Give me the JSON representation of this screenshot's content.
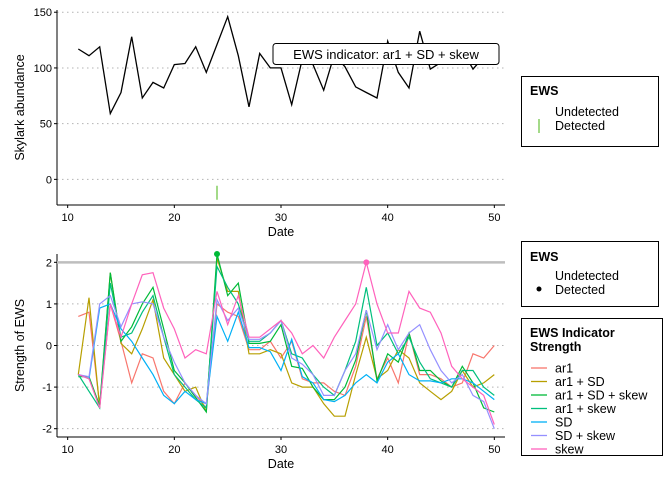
{
  "chart_data": [
    {
      "type": "line",
      "xlabel": "Date",
      "ylabel": "Skylark abundance",
      "xticks": [
        10,
        20,
        30,
        40,
        50
      ],
      "yticks": [
        0,
        50,
        100,
        150
      ],
      "xlim": [
        9,
        51
      ],
      "ylim": [
        -23,
        152
      ],
      "annotation": "EWS indicator: ar1 + SD + skew",
      "series": [
        {
          "name": "abundance",
          "color": "#000000",
          "x": [
            11,
            12,
            13,
            14,
            15,
            16,
            17,
            18,
            19,
            20,
            21,
            22,
            23,
            24,
            25,
            26,
            27,
            28,
            29,
            30,
            31,
            32,
            33,
            34,
            35,
            36,
            37,
            38,
            39,
            40,
            41,
            42,
            43,
            44,
            45,
            46,
            47,
            48,
            49,
            50
          ],
          "values": [
            117,
            111,
            119,
            59,
            78,
            128,
            73,
            87,
            82,
            103,
            104,
            119,
            96,
            121,
            146,
            111,
            65,
            113,
            100,
            100,
            67,
            108,
            103,
            80,
            112,
            101,
            83,
            78,
            73,
            124,
            96,
            82,
            133,
            99,
            105,
            120,
            116,
            99,
            110,
            103
          ]
        }
      ],
      "detected_dates": [
        24
      ],
      "detected_mark_y": -12,
      "legend": {
        "title": "EWS",
        "position": "right",
        "entries": [
          "Undetected",
          "Detected"
        ],
        "detected_color": "#66c23a"
      },
      "grid": "horizontal dotted"
    },
    {
      "type": "line",
      "xlabel": "Date",
      "ylabel": "Strength of EWS",
      "xticks": [
        10,
        20,
        30,
        40,
        50
      ],
      "yticks": [
        -2,
        -1,
        0,
        1,
        2
      ],
      "xlim": [
        9,
        51
      ],
      "ylim": [
        -2.2,
        2.2
      ],
      "threshold": 2,
      "threshold_color": "#bebebe",
      "x": [
        11,
        12,
        13,
        14,
        15,
        16,
        17,
        18,
        19,
        20,
        21,
        22,
        23,
        24,
        25,
        26,
        27,
        28,
        29,
        30,
        31,
        32,
        33,
        34,
        35,
        36,
        37,
        38,
        39,
        40,
        41,
        42,
        43,
        44,
        45,
        46,
        47,
        48,
        49,
        50
      ],
      "series": [
        {
          "name": "ar1",
          "color": "#f8766d",
          "values": [
            0.7,
            0.8,
            -1.45,
            1.0,
            0.1,
            -0.9,
            -0.2,
            -0.3,
            -1.1,
            -1.4,
            -0.9,
            -1.2,
            -1.5,
            1.0,
            0.8,
            0.7,
            -0.1,
            -0.1,
            0.1,
            -0.3,
            0.1,
            -0.8,
            -0.9,
            -0.9,
            -1.1,
            -1.2,
            -0.5,
            0.7,
            -0.8,
            -0.3,
            -0.9,
            0.3,
            -0.7,
            -0.7,
            -0.8,
            -1.0,
            -0.9,
            -0.2,
            -0.3,
            0.0
          ]
        },
        {
          "name": "ar1 + SD",
          "color": "#b79f00",
          "values": [
            -0.7,
            1.15,
            -1.5,
            1.75,
            0.05,
            -0.2,
            0.4,
            1.1,
            -0.3,
            -0.7,
            -1.1,
            -1.0,
            -1.6,
            2.1,
            1.3,
            1.3,
            -0.2,
            -0.2,
            -0.1,
            -0.2,
            -0.9,
            -1.0,
            -1.0,
            -1.4,
            -1.7,
            -1.7,
            -0.7,
            0.2,
            -0.8,
            -0.6,
            -0.1,
            -0.3,
            -0.9,
            -1.1,
            -1.3,
            -1.1,
            -0.6,
            -1.0,
            -0.9,
            -0.7
          ]
        },
        {
          "name": "ar1 + SD + skew",
          "color": "#00ba38",
          "values": [
            -0.75,
            -0.75,
            -1.45,
            1.75,
            0.1,
            0.45,
            1.0,
            1.4,
            0.4,
            -0.6,
            -0.9,
            -1.25,
            -1.6,
            2.2,
            1.2,
            1.5,
            0.05,
            0.05,
            0.1,
            0.5,
            -0.5,
            -0.55,
            -1.0,
            -1.3,
            -1.3,
            -1.0,
            -0.35,
            0.85,
            -0.85,
            -0.2,
            -0.4,
            0.3,
            -0.6,
            -0.6,
            -0.85,
            -1.0,
            -0.5,
            -0.9,
            -1.5,
            -1.6
          ]
        },
        {
          "name": "ar1 + skew",
          "color": "#00bf7d",
          "values": [
            -0.7,
            -1.1,
            -1.5,
            1.5,
            0.2,
            0.3,
            0.8,
            1.2,
            0.2,
            -0.7,
            -1.0,
            -1.3,
            -1.5,
            1.9,
            1.4,
            1.0,
            0.1,
            0.1,
            0.3,
            0.6,
            -0.2,
            -0.3,
            -0.7,
            -1.0,
            -1.2,
            -0.6,
            0.1,
            1.4,
            0.0,
            0.3,
            -0.2,
            0.2,
            -0.4,
            -0.8,
            -0.9,
            -1.0,
            -0.6,
            -0.6,
            -1.0,
            -1.2
          ]
        },
        {
          "name": "SD",
          "color": "#00b0f6",
          "values": [
            -0.7,
            -0.8,
            0.9,
            1.0,
            0.4,
            0.1,
            -0.3,
            -0.7,
            -1.2,
            -1.4,
            -1.1,
            -1.3,
            -1.4,
            0.7,
            0.1,
            0.8,
            -0.05,
            -0.05,
            -0.15,
            -0.6,
            0.15,
            -0.75,
            -0.9,
            -1.3,
            -1.35,
            -1.2,
            -0.9,
            -0.7,
            -0.9,
            -0.4,
            -0.2,
            -0.7,
            -0.85,
            -0.85,
            -0.9,
            -0.8,
            -0.8,
            -0.9,
            -1.1,
            -1.3
          ]
        },
        {
          "name": "SD + skew",
          "color": "#9590ff",
          "values": [
            -0.7,
            -0.75,
            1.0,
            1.2,
            0.45,
            1.0,
            1.05,
            1.0,
            0.2,
            -0.4,
            -0.9,
            -1.2,
            -1.4,
            1.1,
            0.6,
            0.9,
            0.15,
            0.15,
            0.3,
            0.6,
            -0.3,
            -0.45,
            -0.7,
            -1.2,
            -1.2,
            -0.6,
            -0.2,
            0.85,
            -0.1,
            0.5,
            -0.1,
            0.3,
            0.5,
            -0.1,
            -0.6,
            -0.9,
            -0.7,
            -1.2,
            -1.35,
            -2.0
          ]
        },
        {
          "name": "skew",
          "color": "#ff62bc",
          "values": [
            -0.7,
            -0.8,
            -1.5,
            1.0,
            0.2,
            1.0,
            1.7,
            1.75,
            0.9,
            0.4,
            -0.3,
            -0.1,
            -0.2,
            1.3,
            0.5,
            1.2,
            0.2,
            0.2,
            0.4,
            0.6,
            0.3,
            -0.2,
            0.0,
            -0.3,
            0.2,
            0.6,
            1.0,
            2.0,
            1.0,
            0.3,
            0.3,
            1.3,
            0.9,
            0.8,
            0.3,
            -0.5,
            -0.8,
            -1.0,
            -1.2,
            -1.9
          ]
        }
      ],
      "detected_points": [
        {
          "x": 24,
          "y": 2.2,
          "color": "#00ba38"
        },
        {
          "x": 38,
          "y": 2.0,
          "color": "#ff62bc"
        }
      ],
      "legends": [
        {
          "title": "EWS",
          "entries": [
            "Undetected",
            "Detected"
          ]
        },
        {
          "title": "EWS Indicator\nStrength",
          "entries": [
            "ar1",
            "ar1 + SD",
            "ar1 + SD + skew",
            "ar1 + skew",
            "SD",
            "SD + skew",
            "skew"
          ]
        }
      ],
      "grid": "horizontal dotted"
    }
  ]
}
